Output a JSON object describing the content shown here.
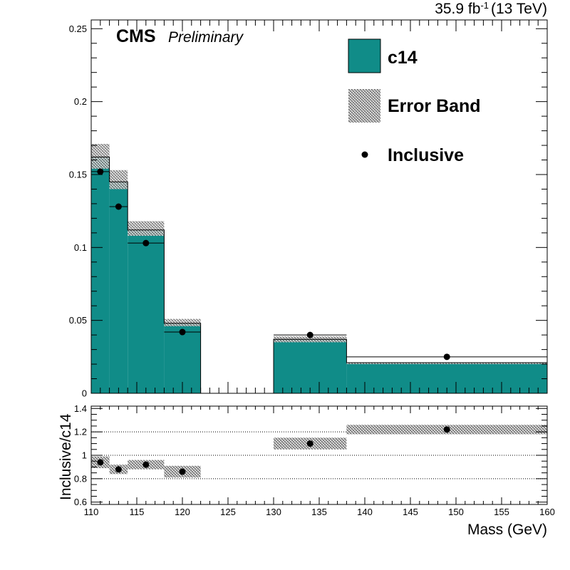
{
  "header": {
    "experiment": "CMS",
    "status": "Preliminary",
    "lumi_value": "35.9 fb",
    "lumi_exp": "-1",
    "energy": "(13 TeV)"
  },
  "legend": {
    "mc_label": "c14",
    "band_label": "Error Band",
    "data_label": "Inclusive"
  },
  "colors": {
    "mc_fill": "#108c88",
    "band_hatch": "#555555",
    "data_marker": "#000000"
  },
  "chart_data": [
    {
      "type": "bar",
      "panel": "main",
      "xlabel": "",
      "ylabel": "",
      "xlim": [
        110,
        160
      ],
      "ylim": [
        0,
        0.256
      ],
      "yticks": [
        0,
        0.05,
        0.1,
        0.15,
        0.2,
        0.25
      ],
      "ytick_labels": [
        "0",
        "0.05",
        "0.1",
        "0.15",
        "0.2",
        "0.25"
      ],
      "bin_edges": [
        110,
        112,
        114,
        118,
        122,
        130,
        138,
        160
      ],
      "series": [
        {
          "name": "c14",
          "style": "filled-histogram",
          "values": [
            0.162,
            0.145,
            0.112,
            0.048,
            0.0,
            0.037,
            0.021
          ]
        },
        {
          "name": "Error Band",
          "style": "hatched-band",
          "low": [
            0.154,
            0.14,
            0.108,
            0.046,
            0.0,
            0.035,
            0.02
          ],
          "high": [
            0.171,
            0.153,
            0.118,
            0.051,
            0.0,
            0.039,
            0.021
          ]
        },
        {
          "name": "Inclusive",
          "style": "points",
          "x": [
            111,
            113,
            116,
            120,
            134,
            149
          ],
          "y": [
            0.152,
            0.128,
            0.103,
            0.042,
            0.04,
            0.025
          ],
          "xerr_low": [
            1,
            1,
            2,
            2,
            4,
            11
          ],
          "xerr_high": [
            1,
            1,
            2,
            2,
            4,
            11
          ]
        }
      ]
    },
    {
      "type": "scatter",
      "panel": "ratio",
      "xlabel": "Mass (GeV)",
      "ylabel": "Inclusive/c14",
      "xlim": [
        110,
        160
      ],
      "ylim": [
        0.58,
        1.42
      ],
      "xticks": [
        110,
        115,
        120,
        125,
        130,
        135,
        140,
        145,
        150,
        155,
        160
      ],
      "xtick_labels": [
        "110",
        "115",
        "120",
        "125",
        "130",
        "135",
        "140",
        "145",
        "150",
        "155",
        "160"
      ],
      "yticks": [
        0.6,
        0.8,
        1.0,
        1.2,
        1.4
      ],
      "ytick_labels": [
        "0.6",
        "0.8",
        "1",
        "1.2",
        "1.4"
      ],
      "gridlines_y": [
        0.8,
        1.0,
        1.2
      ],
      "band_bins": [
        {
          "x0": 110,
          "x1": 112,
          "low": 0.89,
          "high": 0.99
        },
        {
          "x0": 112,
          "x1": 114,
          "low": 0.84,
          "high": 0.92
        },
        {
          "x0": 114,
          "x1": 118,
          "low": 0.88,
          "high": 0.96
        },
        {
          "x0": 118,
          "x1": 122,
          "low": 0.81,
          "high": 0.91
        },
        {
          "x0": 130,
          "x1": 138,
          "low": 1.05,
          "high": 1.15
        },
        {
          "x0": 138,
          "x1": 160,
          "low": 1.18,
          "high": 1.26
        }
      ],
      "series": [
        {
          "name": "Inclusive/c14",
          "x": [
            111,
            113,
            116,
            120,
            134,
            149
          ],
          "y": [
            0.94,
            0.88,
            0.92,
            0.86,
            1.1,
            1.22
          ]
        }
      ]
    }
  ]
}
